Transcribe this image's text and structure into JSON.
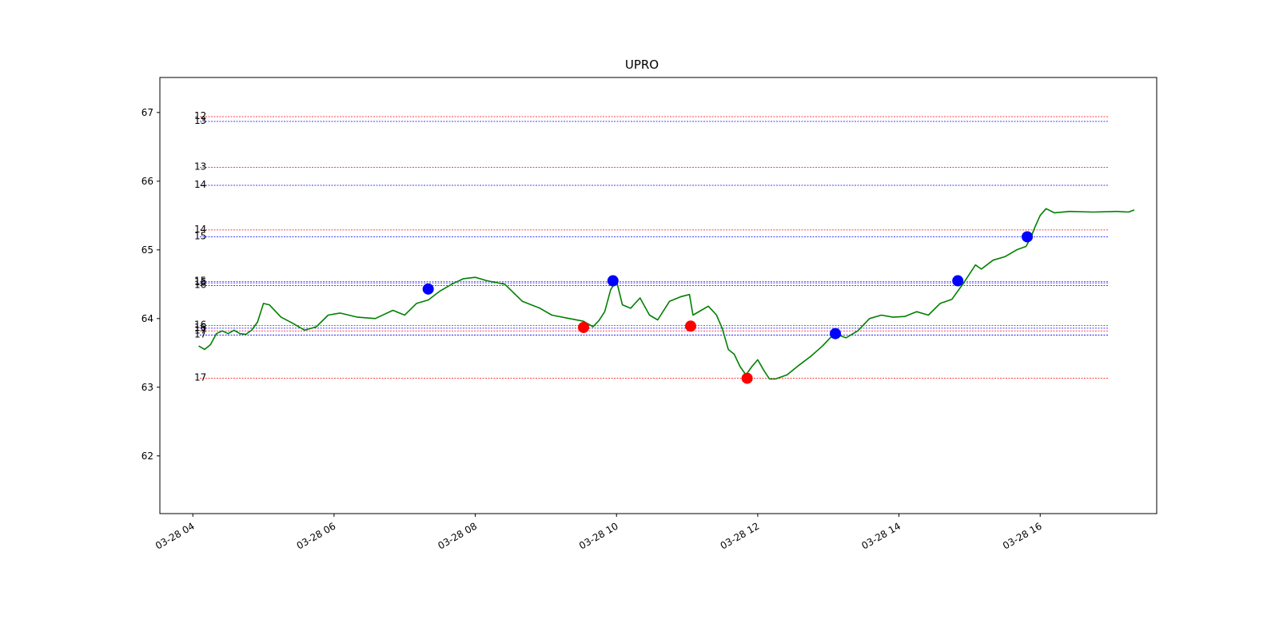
{
  "chart_data": {
    "type": "line",
    "title": "UPRO",
    "xlabel": "",
    "ylabel": "",
    "xlim": [
      "2024-03-28 03:32",
      "2024-03-28 17:39"
    ],
    "ylim": [
      61.16,
      67.51
    ],
    "x_ticks": [
      {
        "t": "2024-03-28 04:00",
        "label": "03-28 04"
      },
      {
        "t": "2024-03-28 06:00",
        "label": "03-28 06"
      },
      {
        "t": "2024-03-28 08:00",
        "label": "03-28 08"
      },
      {
        "t": "2024-03-28 10:00",
        "label": "03-28 10"
      },
      {
        "t": "2024-03-28 12:00",
        "label": "03-28 12"
      },
      {
        "t": "2024-03-28 14:00",
        "label": "03-28 14"
      },
      {
        "t": "2024-03-28 16:00",
        "label": "03-28 16"
      }
    ],
    "y_ticks": [
      62,
      63,
      64,
      65,
      66,
      67
    ],
    "grid": false,
    "line_color": "#008000",
    "price_series": [
      [
        "2024-03-28 04:05",
        63.6
      ],
      [
        "2024-03-28 04:10",
        63.55
      ],
      [
        "2024-03-28 04:15",
        63.62
      ],
      [
        "2024-03-28 04:20",
        63.78
      ],
      [
        "2024-03-28 04:25",
        63.82
      ],
      [
        "2024-03-28 04:30",
        63.78
      ],
      [
        "2024-03-28 04:35",
        63.83
      ],
      [
        "2024-03-28 04:40",
        63.78
      ],
      [
        "2024-03-28 04:45",
        63.77
      ],
      [
        "2024-03-28 04:50",
        63.83
      ],
      [
        "2024-03-28 04:55",
        63.95
      ],
      [
        "2024-03-28 05:00",
        64.22
      ],
      [
        "2024-03-28 05:05",
        64.2
      ],
      [
        "2024-03-28 05:15",
        64.02
      ],
      [
        "2024-03-28 05:25",
        63.93
      ],
      [
        "2024-03-28 05:35",
        63.83
      ],
      [
        "2024-03-28 05:45",
        63.88
      ],
      [
        "2024-03-28 05:55",
        64.05
      ],
      [
        "2024-03-28 06:05",
        64.08
      ],
      [
        "2024-03-28 06:20",
        64.02
      ],
      [
        "2024-03-28 06:35",
        64.0
      ],
      [
        "2024-03-28 06:50",
        64.12
      ],
      [
        "2024-03-28 07:00",
        64.05
      ],
      [
        "2024-03-28 07:10",
        64.22
      ],
      [
        "2024-03-28 07:20",
        64.27
      ],
      [
        "2024-03-28 07:30",
        64.4
      ],
      [
        "2024-03-28 07:40",
        64.5
      ],
      [
        "2024-03-28 07:50",
        64.58
      ],
      [
        "2024-03-28 08:00",
        64.6
      ],
      [
        "2024-03-28 08:10",
        64.55
      ],
      [
        "2024-03-28 08:25",
        64.5
      ],
      [
        "2024-03-28 08:40",
        64.25
      ],
      [
        "2024-03-28 08:55",
        64.15
      ],
      [
        "2024-03-28 09:05",
        64.05
      ],
      [
        "2024-03-28 09:20",
        64.0
      ],
      [
        "2024-03-28 09:32",
        63.96
      ],
      [
        "2024-03-28 09:40",
        63.88
      ],
      [
        "2024-03-28 09:45",
        63.97
      ],
      [
        "2024-03-28 09:50",
        64.1
      ],
      [
        "2024-03-28 09:55",
        64.42
      ],
      [
        "2024-03-28 10:00",
        64.55
      ],
      [
        "2024-03-28 10:05",
        64.2
      ],
      [
        "2024-03-28 10:12",
        64.15
      ],
      [
        "2024-03-28 10:20",
        64.3
      ],
      [
        "2024-03-28 10:28",
        64.05
      ],
      [
        "2024-03-28 10:35",
        63.98
      ],
      [
        "2024-03-28 10:45",
        64.25
      ],
      [
        "2024-03-28 10:55",
        64.32
      ],
      [
        "2024-03-28 11:02",
        64.35
      ],
      [
        "2024-03-28 11:05",
        64.05
      ],
      [
        "2024-03-28 11:12",
        64.12
      ],
      [
        "2024-03-28 11:18",
        64.18
      ],
      [
        "2024-03-28 11:25",
        64.05
      ],
      [
        "2024-03-28 11:30",
        63.85
      ],
      [
        "2024-03-28 11:35",
        63.55
      ],
      [
        "2024-03-28 11:40",
        63.48
      ],
      [
        "2024-03-28 11:45",
        63.3
      ],
      [
        "2024-03-28 11:50",
        63.18
      ],
      [
        "2024-03-28 11:55",
        63.3
      ],
      [
        "2024-03-28 12:00",
        63.4
      ],
      [
        "2024-03-28 12:05",
        63.25
      ],
      [
        "2024-03-28 12:10",
        63.12
      ],
      [
        "2024-03-28 12:15",
        63.12
      ],
      [
        "2024-03-28 12:25",
        63.18
      ],
      [
        "2024-03-28 12:35",
        63.32
      ],
      [
        "2024-03-28 12:45",
        63.45
      ],
      [
        "2024-03-28 12:55",
        63.6
      ],
      [
        "2024-03-28 13:05",
        63.78
      ],
      [
        "2024-03-28 13:15",
        63.72
      ],
      [
        "2024-03-28 13:25",
        63.82
      ],
      [
        "2024-03-28 13:35",
        64.0
      ],
      [
        "2024-03-28 13:45",
        64.05
      ],
      [
        "2024-03-28 13:55",
        64.02
      ],
      [
        "2024-03-28 14:05",
        64.03
      ],
      [
        "2024-03-28 14:15",
        64.1
      ],
      [
        "2024-03-28 14:25",
        64.05
      ],
      [
        "2024-03-28 14:35",
        64.22
      ],
      [
        "2024-03-28 14:45",
        64.28
      ],
      [
        "2024-03-28 14:55",
        64.52
      ],
      [
        "2024-03-28 15:00",
        64.65
      ],
      [
        "2024-03-28 15:05",
        64.78
      ],
      [
        "2024-03-28 15:10",
        64.72
      ],
      [
        "2024-03-28 15:20",
        64.85
      ],
      [
        "2024-03-28 15:30",
        64.9
      ],
      [
        "2024-03-28 15:40",
        65.0
      ],
      [
        "2024-03-28 15:48",
        65.05
      ],
      [
        "2024-03-28 15:52",
        65.18
      ],
      [
        "2024-03-28 15:56",
        65.35
      ],
      [
        "2024-03-28 16:00",
        65.5
      ],
      [
        "2024-03-28 16:05",
        65.6
      ],
      [
        "2024-03-28 16:12",
        65.54
      ],
      [
        "2024-03-28 16:25",
        65.56
      ],
      [
        "2024-03-28 16:45",
        65.55
      ],
      [
        "2024-03-28 17:05",
        65.56
      ],
      [
        "2024-03-28 17:15",
        65.55
      ],
      [
        "2024-03-28 17:20",
        65.58
      ]
    ],
    "levels": [
      {
        "label": "12",
        "y": 66.94,
        "color": "#ff0000"
      },
      {
        "label": "13",
        "y": 66.87,
        "color": "#0000ff"
      },
      {
        "label": "13",
        "y": 66.2,
        "color": "#ff0000"
      },
      {
        "label": "14",
        "y": 65.94,
        "color": "#0000ff"
      },
      {
        "label": "14",
        "y": 65.29,
        "color": "#ff0000"
      },
      {
        "label": "15",
        "y": 65.19,
        "color": "#0000ff"
      },
      {
        "label": "15",
        "y": 64.54,
        "color": "#ff0000"
      },
      {
        "label": "16",
        "y": 64.52,
        "color": "#0000ff"
      },
      {
        "label": "16",
        "y": 64.48,
        "color": "#0000ff"
      },
      {
        "label": "16",
        "y": 63.9,
        "color": "#ff0000"
      },
      {
        "label": "16",
        "y": 63.86,
        "color": "#0000ff"
      },
      {
        "label": "17",
        "y": 63.82,
        "color": "#ff0000"
      },
      {
        "label": "17",
        "y": 63.76,
        "color": "#0000ff"
      },
      {
        "label": "17",
        "y": 63.13,
        "color": "#ff0000"
      }
    ],
    "markers": [
      {
        "t": "2024-03-28 07:20",
        "y": 64.43,
        "color": "#0000ff"
      },
      {
        "t": "2024-03-28 09:32",
        "y": 63.87,
        "color": "#ff0000"
      },
      {
        "t": "2024-03-28 09:57",
        "y": 64.55,
        "color": "#0000ff"
      },
      {
        "t": "2024-03-28 11:03",
        "y": 63.89,
        "color": "#ff0000"
      },
      {
        "t": "2024-03-28 11:51",
        "y": 63.13,
        "color": "#ff0000"
      },
      {
        "t": "2024-03-28 13:06",
        "y": 63.78,
        "color": "#0000ff"
      },
      {
        "t": "2024-03-28 14:50",
        "y": 64.55,
        "color": "#0000ff"
      },
      {
        "t": "2024-03-28 15:49",
        "y": 65.19,
        "color": "#0000ff"
      }
    ]
  }
}
